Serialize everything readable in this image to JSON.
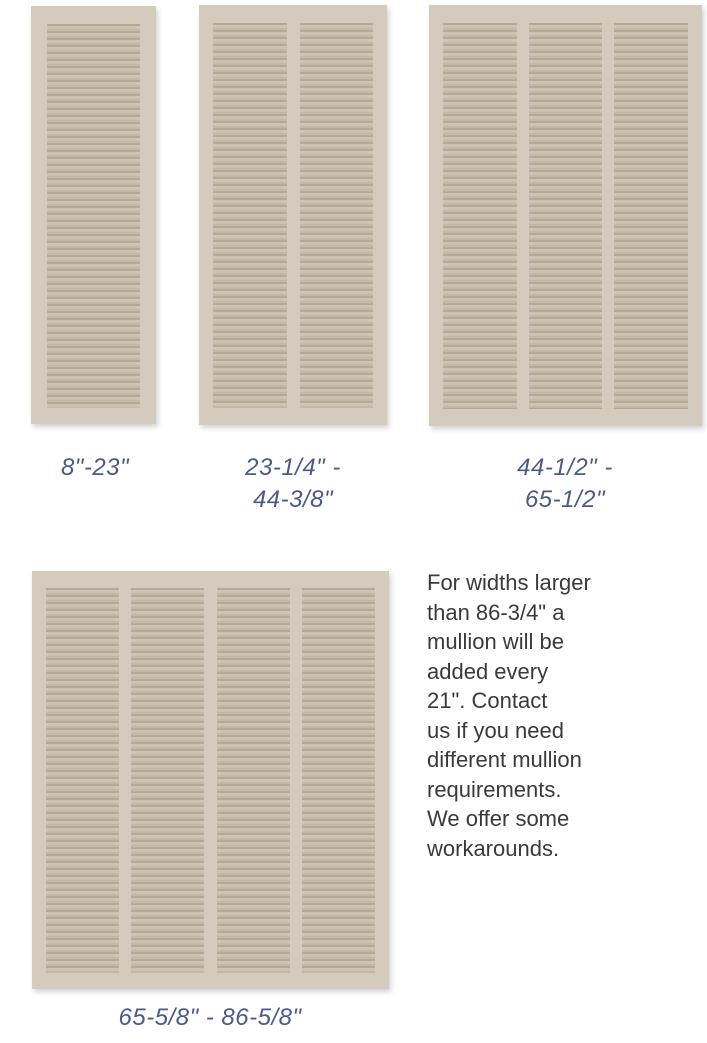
{
  "shutters": [
    {
      "size_label": "8\"-23\"",
      "panels": 1
    },
    {
      "size_label": "23-1/4\" -\n44-3/8\"",
      "panels": 2
    },
    {
      "size_label": "44-1/2\" -\n65-1/2\"",
      "panels": 3
    },
    {
      "size_label": "65-5/8\" - 86-5/8\"",
      "panels": 4
    }
  ],
  "note": {
    "text": "For widths larger\nthan 86-3/4\" a\nmullion will be\nadded every\n21\".  Contact\nus if you need\ndifferent mullion\nrequirements.\nWe offer some\nworkarounds."
  },
  "colors": {
    "frame": "#d3cbbd",
    "louver_dark": "#b3aa99",
    "label_text": "#4b5b86",
    "note_text": "#3a3a3a"
  }
}
